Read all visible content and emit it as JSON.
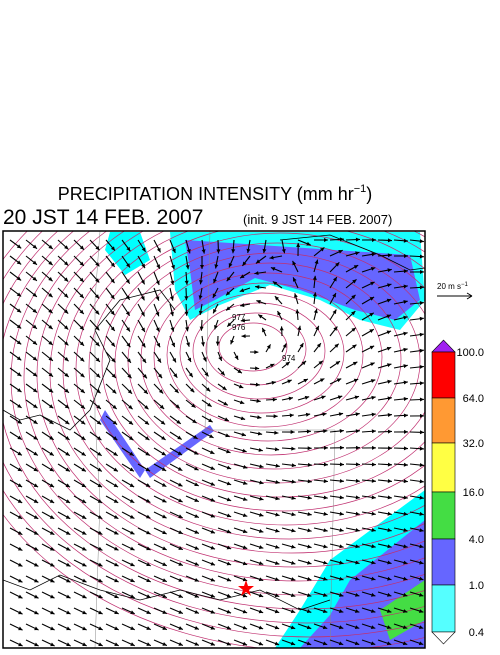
{
  "header": {
    "title_main": "PRECIPITATION INTENSITY (mm hr",
    "title_exp": "−1",
    "title_end": ")",
    "valid_time": "20 JST 14 FEB. 2007",
    "init_time": "(init. 9 JST 14 FEB. 2007)"
  },
  "reference_vector": {
    "label_main": "20 m s",
    "label_exp": "−1"
  },
  "colorbar": {
    "labels": [
      "100.0",
      "64.0",
      "32.0",
      "16.0",
      "4.0",
      "1.0",
      "0.4"
    ]
  },
  "isobar_labels": [
    "977",
    "976",
    "974"
  ]
}
